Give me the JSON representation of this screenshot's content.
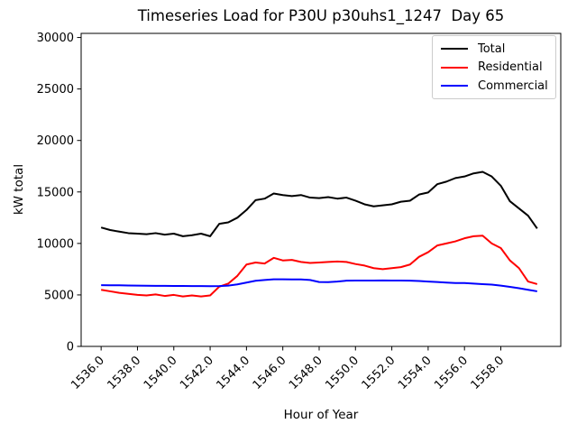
{
  "figure": {
    "title": "Timeseries Load for P30U p30uhs1_1247  Day 65"
  },
  "chart_data": {
    "type": "line",
    "title": "Timeseries Load for P30U p30uhs1_1247  Day 65",
    "xlabel": "Hour of Year",
    "ylabel": "kW total",
    "grid": false,
    "xlim": [
      1534.9,
      1561.3
    ],
    "ylim": [
      0,
      30400
    ],
    "xticks": [
      1536,
      1538,
      1540,
      1542,
      1544,
      1546,
      1548,
      1550,
      1552,
      1554,
      1556,
      1558
    ],
    "xtick_labels": [
      "1536.0",
      "1538.0",
      "1540.0",
      "1542.0",
      "1544.0",
      "1546.0",
      "1548.0",
      "1550.0",
      "1552.0",
      "1554.0",
      "1556.0",
      "1558.0"
    ],
    "yticks": [
      0,
      5000,
      10000,
      15000,
      20000,
      25000,
      30000
    ],
    "ytick_labels": [
      "0",
      "5000",
      "10000",
      "15000",
      "20000",
      "25000",
      "30000"
    ],
    "legend": {
      "position": "upper right",
      "entries": [
        "Total",
        "Residential",
        "Commercial"
      ]
    },
    "x": [
      1536,
      1536.5,
      1537,
      1537.5,
      1538,
      1538.5,
      1539,
      1539.5,
      1540,
      1540.5,
      1541,
      1541.5,
      1542,
      1542.5,
      1543,
      1543.5,
      1544,
      1544.5,
      1545,
      1545.5,
      1546,
      1546.5,
      1547,
      1547.5,
      1548,
      1548.5,
      1549,
      1549.5,
      1550,
      1550.5,
      1551,
      1551.5,
      1552,
      1552.5,
      1553,
      1553.5,
      1554,
      1554.5,
      1555,
      1555.5,
      1556,
      1556.5,
      1557,
      1557.5,
      1558,
      1558.5,
      1559,
      1559.5,
      1560
    ],
    "series": [
      {
        "name": "Total",
        "color": "#000000",
        "values": [
          11550,
          11300,
          11150,
          11000,
          10950,
          10900,
          11000,
          10850,
          10950,
          10700,
          10800,
          10950,
          10700,
          11900,
          12050,
          12500,
          13250,
          14200,
          14350,
          14850,
          14700,
          14600,
          14700,
          14450,
          14400,
          14500,
          14350,
          14450,
          14150,
          13800,
          13600,
          13700,
          13800,
          14050,
          14150,
          14750,
          14950,
          15750,
          16000,
          16350,
          16500,
          16800,
          16950,
          16500,
          15600,
          14100,
          13400,
          12700,
          11450
        ]
      },
      {
        "name": "Residential",
        "color": "#ff0000",
        "values": [
          5500,
          5350,
          5200,
          5100,
          5000,
          4950,
          5050,
          4900,
          5000,
          4850,
          4950,
          4850,
          4950,
          5800,
          6100,
          6850,
          7950,
          8150,
          8050,
          8600,
          8350,
          8400,
          8200,
          8100,
          8150,
          8200,
          8250,
          8200,
          8000,
          7850,
          7600,
          7500,
          7600,
          7700,
          7950,
          8700,
          9150,
          9800,
          10000,
          10200,
          10500,
          10700,
          10750,
          10000,
          9550,
          8350,
          7600,
          6300,
          6050
        ]
      },
      {
        "name": "Commercial",
        "color": "#0000ff",
        "values": [
          5950,
          5940,
          5930,
          5910,
          5900,
          5890,
          5880,
          5880,
          5870,
          5870,
          5860,
          5860,
          5850,
          5860,
          5900,
          6020,
          6200,
          6370,
          6450,
          6520,
          6520,
          6500,
          6500,
          6450,
          6250,
          6240,
          6300,
          6380,
          6400,
          6400,
          6400,
          6410,
          6400,
          6400,
          6380,
          6350,
          6300,
          6250,
          6200,
          6150,
          6150,
          6100,
          6050,
          6000,
          5900,
          5780,
          5650,
          5500,
          5350
        ]
      }
    ]
  }
}
